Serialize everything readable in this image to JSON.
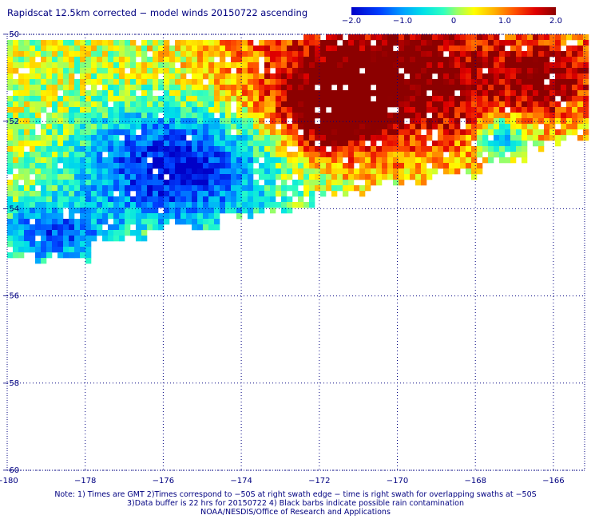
{
  "title": "Rapidscat 12.5km corrected − model winds 20150722 ascending",
  "colorbar": {
    "ticks": [
      "−2.0",
      "−1.0",
      "0",
      "1.0",
      "2.0"
    ],
    "range": [
      -2.0,
      2.0
    ]
  },
  "map": {
    "lon_ticks": [
      "−180",
      "−178",
      "−176",
      "−174",
      "−172",
      "−170",
      "−168",
      "−166"
    ],
    "lat_ticks": [
      "−50",
      "−52",
      "−54",
      "−56",
      "−58",
      "−60"
    ],
    "lon_range": [
      -180,
      -165.2
    ],
    "lat_range": [
      -50,
      -60
    ],
    "grid": true
  },
  "notes": {
    "line1": "Note: 1) Times are GMT 2)Times correspond to −50S at right swath edge − time is right swath for overlapping swaths at −50S",
    "line2": "3)Data buffer is 22 hrs for 20150722 4) Black barbs indicate possible rain contamination",
    "line3": "NOAA/NESDIS/Office of Research and Applications"
  }
}
